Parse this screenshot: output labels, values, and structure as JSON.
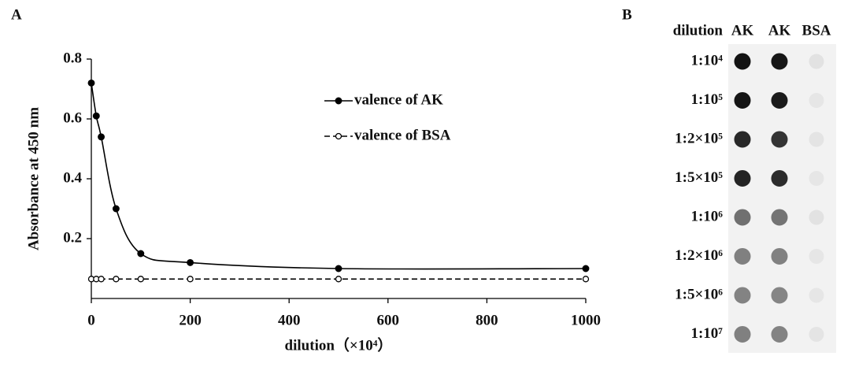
{
  "chart_data": {
    "type": "line",
    "panel_label": "A",
    "x_label": "dilution（×10⁴）",
    "y_label": "Absorbance at 450 nm",
    "x": [
      0,
      10,
      20,
      50,
      100,
      200,
      500,
      1000
    ],
    "series": [
      {
        "name": "valence of AK",
        "color": "#000000",
        "line_style": "solid",
        "marker": "filled",
        "values": [
          0.72,
          0.61,
          0.54,
          0.3,
          0.15,
          0.12,
          0.1,
          0.1
        ]
      },
      {
        "name": "valence of BSA",
        "color": "#000000",
        "line_style": "dashed",
        "marker": "open",
        "values": [
          0.065,
          0.065,
          0.065,
          0.065,
          0.065,
          0.065,
          0.065,
          0.065
        ]
      }
    ],
    "xlim": [
      0,
      1000
    ],
    "xticks": [
      0,
      200,
      400,
      600,
      800,
      1000
    ],
    "ylim": [
      0,
      0.8
    ],
    "yticks": [
      0.2,
      0.4,
      0.6,
      0.8
    ],
    "grid": false
  },
  "blot": {
    "panel_label": "B",
    "header": [
      "dilution",
      "AK",
      "AK",
      "BSA"
    ],
    "rows": [
      {
        "label": "1:10⁴",
        "spots": [
          "#080808",
          "#0c0c0c",
          "#e2e2e2"
        ]
      },
      {
        "label": "1:10⁵",
        "spots": [
          "#0a0a0a",
          "#101010",
          "#e6e6e6"
        ]
      },
      {
        "label": "1:2×10⁵",
        "spots": [
          "#1e1e1e",
          "#2a2a2a",
          "#e4e4e4"
        ]
      },
      {
        "label": "1:5×10⁵",
        "spots": [
          "#1a1a1a",
          "#222222",
          "#e6e6e6"
        ]
      },
      {
        "label": "1:10⁶",
        "spots": [
          "#6a6a6a",
          "#6e6e6e",
          "#e2e2e2"
        ]
      },
      {
        "label": "1:2×10⁶",
        "spots": [
          "#7a7a7a",
          "#7c7c7c",
          "#e6e6e6"
        ]
      },
      {
        "label": "1:5×10⁶",
        "spots": [
          "#7e7e7e",
          "#808080",
          "#e6e6e6"
        ]
      },
      {
        "label": "1:10⁷",
        "spots": [
          "#7a7a7a",
          "#7e7e7e",
          "#e4e4e4"
        ]
      }
    ]
  }
}
